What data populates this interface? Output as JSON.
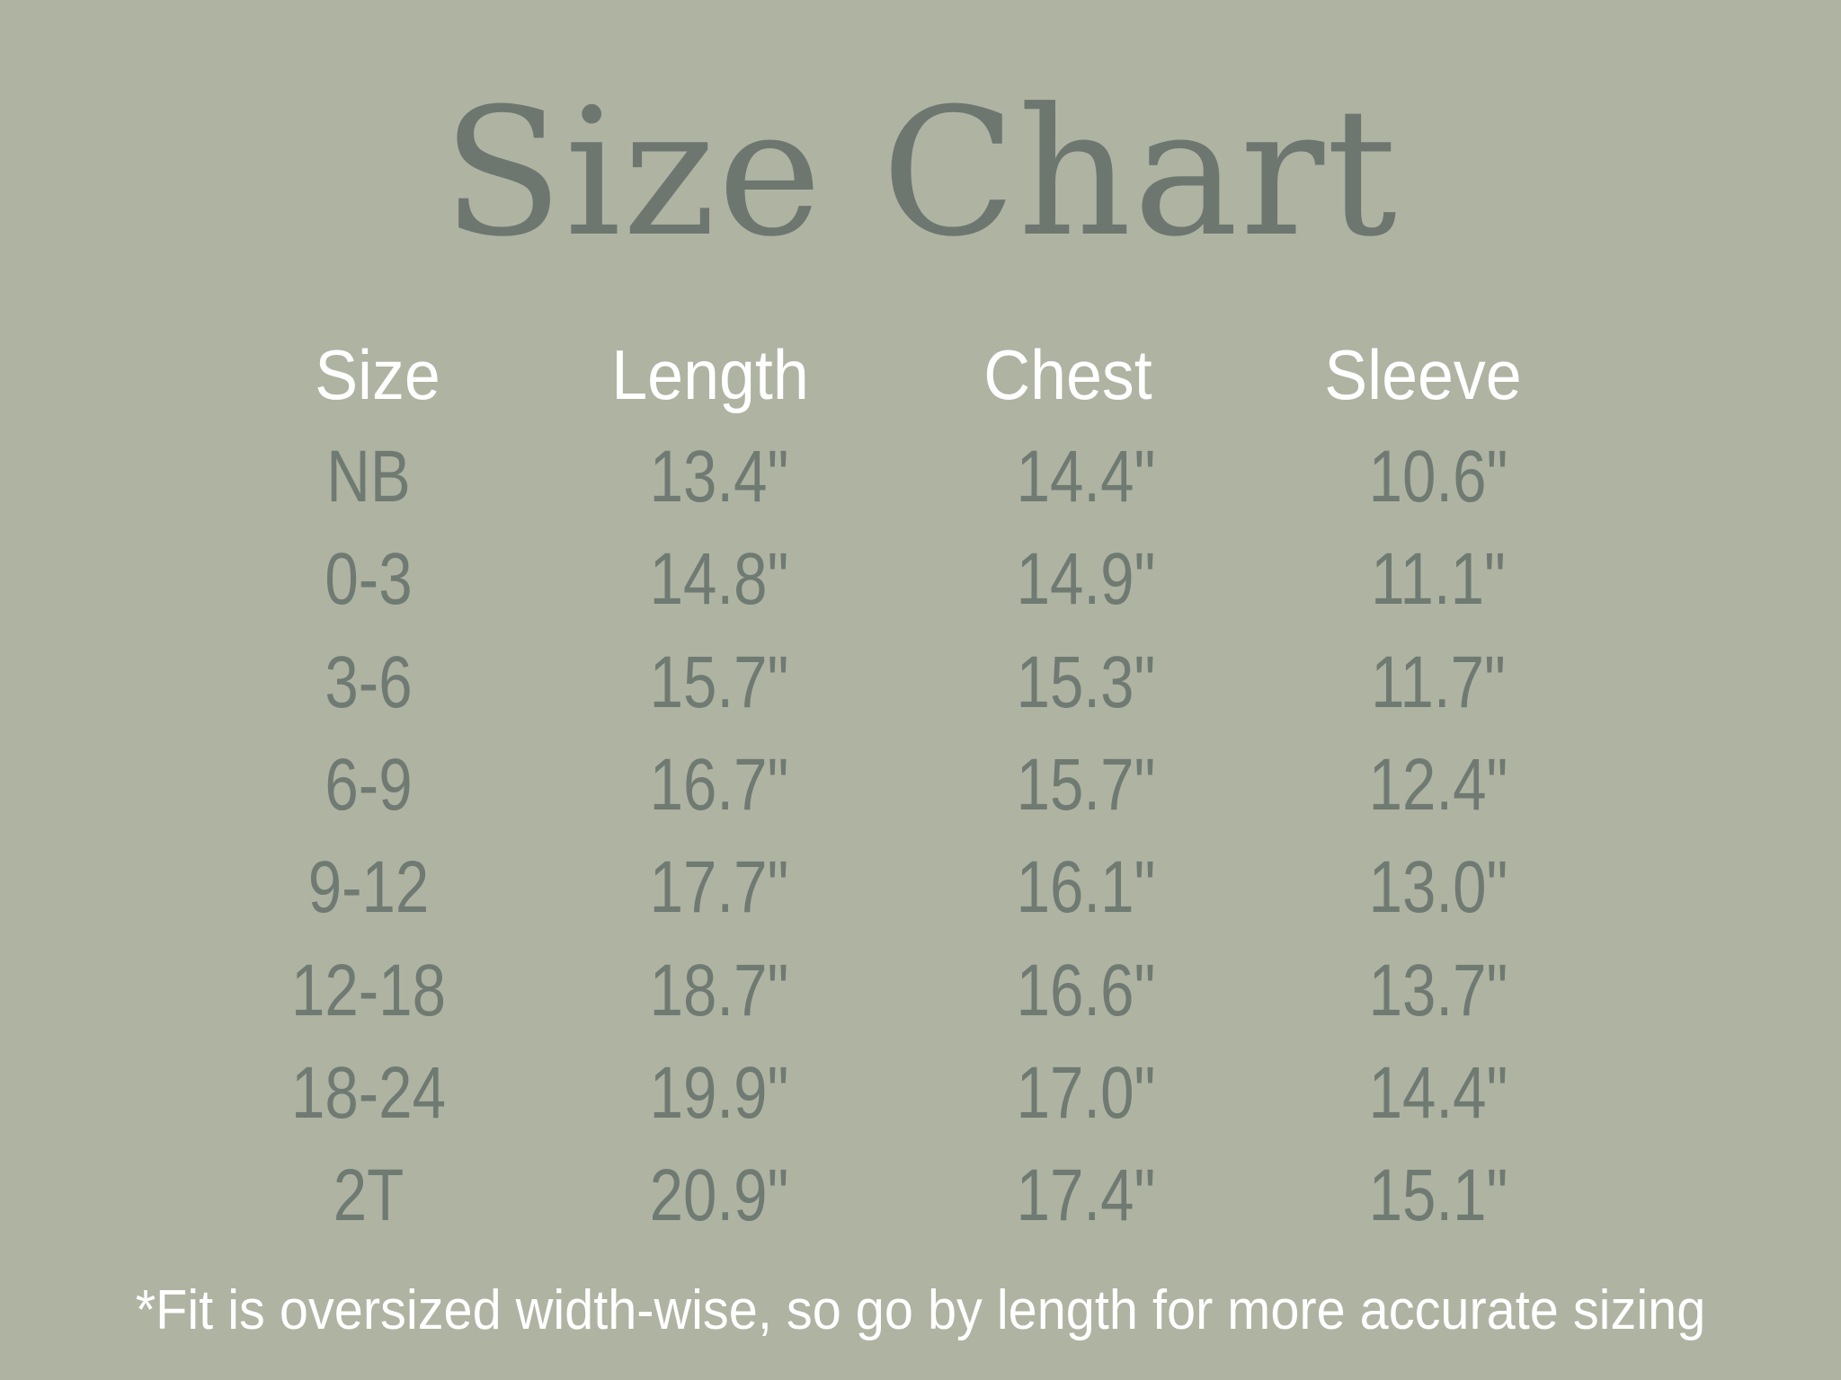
{
  "title": "Size Chart",
  "table": {
    "headers": [
      "Size",
      "Length",
      "Chest",
      "Sleeve"
    ],
    "rows": [
      [
        "NB",
        "13.4\"",
        "14.4\"",
        "10.6\""
      ],
      [
        "0-3",
        "14.8\"",
        "14.9\"",
        "11.1\""
      ],
      [
        "3-6",
        "15.7\"",
        "15.3\"",
        "11.7\""
      ],
      [
        "6-9",
        "16.7\"",
        "15.7\"",
        "12.4\""
      ],
      [
        "9-12",
        "17.7\"",
        "16.1\"",
        "13.0\""
      ],
      [
        "12-18",
        "18.7\"",
        "16.6\"",
        "13.7\""
      ],
      [
        "18-24",
        "19.9\"",
        "17.0\"",
        "14.4\""
      ],
      [
        "2T",
        "20.9\"",
        "17.4\"",
        "15.1\""
      ]
    ]
  },
  "footnote": "*Fit is oversized width-wise, so go by length for more accurate sizing",
  "colors": {
    "background": "#afb3a2",
    "text": "#6f7a72",
    "header": "#ffffff"
  }
}
